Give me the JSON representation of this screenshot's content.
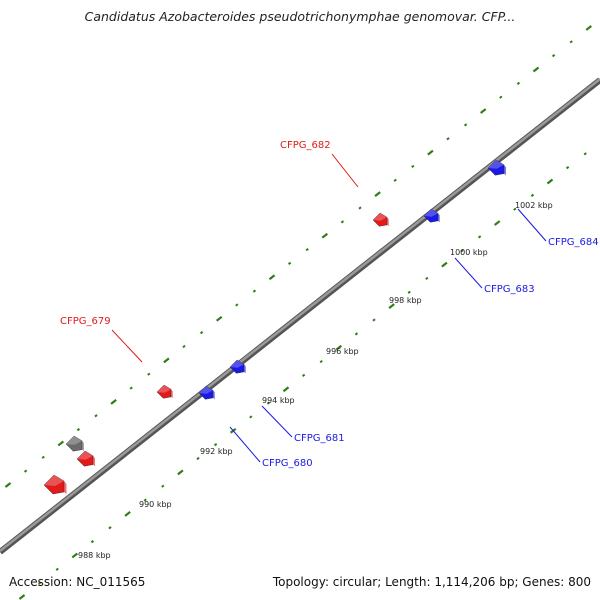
{
  "title": "Candidatus Azobacteroides pseudotrichonymphae genomovar. CFP...",
  "accession": "Accession: NC_011565",
  "summary": "Topology: circular; Length: 1,114,206 bp; Genes: 800",
  "colors": {
    "backbone": "#7a7a7a",
    "tick_marks": "#2e7d17",
    "forward_gene": "#e21a1a",
    "reverse_gene": "#1a1ae6",
    "other_gene": "#6b6b6b"
  },
  "scale_labels": [
    "988 kbp",
    "990 kbp",
    "992 kbp",
    "994 kbp",
    "996 kbp",
    "998 kbp",
    "1000 kbp",
    "1002 kbp"
  ],
  "gene_labels": [
    {
      "text": "CFPG_679",
      "strand": "forward"
    },
    {
      "text": "CFPG_682",
      "strand": "forward"
    },
    {
      "text": "CFPG_680",
      "strand": "reverse"
    },
    {
      "text": "CFPG_681",
      "strand": "reverse"
    },
    {
      "text": "CFPG_683",
      "strand": "reverse"
    },
    {
      "text": "CFPG_684",
      "strand": "reverse"
    }
  ]
}
